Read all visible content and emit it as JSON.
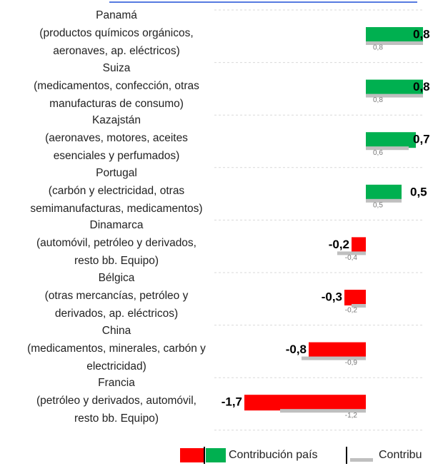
{
  "chart_data": {
    "type": "bar",
    "orientation": "horizontal",
    "categories": [
      "Panamá\n(productos químicos orgánicos,\naeronaves, ap. eléctricos)",
      "Suiza\n(medicamentos, confección, otras\nmanufacturas de consumo)",
      "Kazajstán\n(aeronaves, motores, aceites\nesenciales y perfumados)",
      "Portugal\n(carbón y electricidad, otras\nsemimanufacturas, medicamentos)",
      "Dinamarca\n(automóvil, petróleo y derivados,\nresto bb. Equipo)",
      "Bélgica\n(otras mercancías, petróleo y\nderivados, ap. eléctricos)",
      "China\n(medicamentos, minerales, carbón y\nelectricidad)",
      "Francia\n(petróleo y derivados, automóvil,\nresto bb. Equipo)"
    ],
    "series": [
      {
        "name": "Contribución país",
        "colors": {
          "positive": "#00b050",
          "negative": "#ff0000"
        },
        "values": [
          0.8,
          0.8,
          0.7,
          0.5,
          -0.2,
          -0.3,
          -0.8,
          -1.7
        ],
        "value_labels": [
          "0,8",
          "0,8",
          "0,7",
          "0,5",
          "-0,2",
          "-0,3",
          "-0,8",
          "-1,7"
        ]
      },
      {
        "name": "Contribu",
        "color": "#bfbfbf",
        "values": [
          0.8,
          0.8,
          0.6,
          0.5,
          -0.4,
          -0.2,
          -0.9,
          -1.2
        ],
        "value_labels": [
          "0,8",
          "0,8",
          "0,6",
          "0,5",
          "-0,4",
          "-0,2",
          "-0,9",
          "-1,2"
        ]
      }
    ]
  }
}
